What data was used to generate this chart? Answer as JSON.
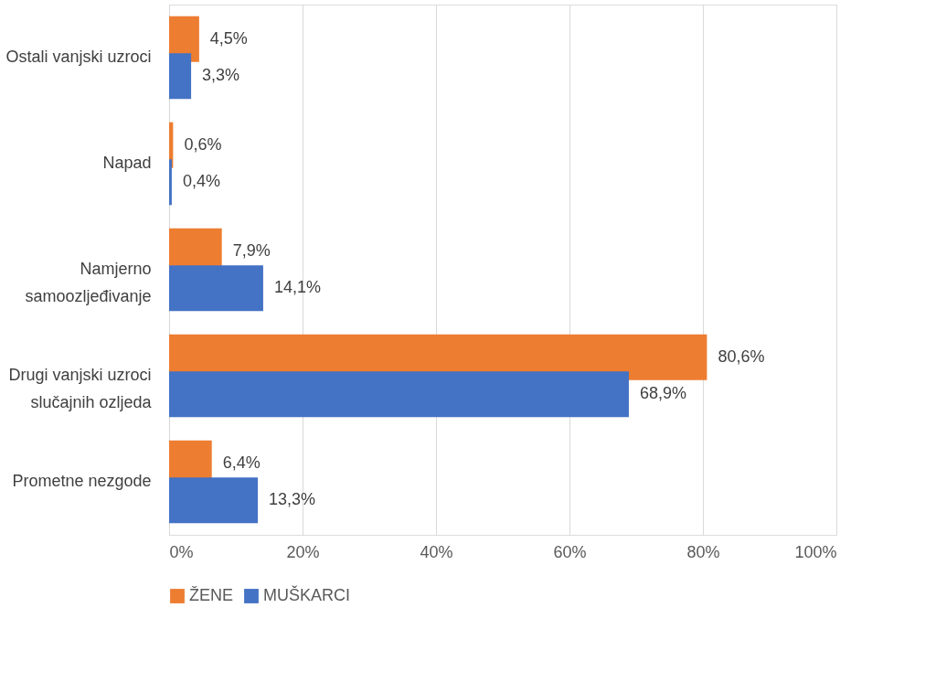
{
  "chart_data": {
    "type": "bar",
    "orientation": "horizontal",
    "categories": [
      "Ostali vanjski uzroci",
      "Napad",
      "Namjerno samoozljeđivanje",
      "Drugi vanjski uzroci slučajnih ozljeda",
      "Prometne nezgode"
    ],
    "series": [
      {
        "name": "ŽENE",
        "color": "#ed7d31",
        "values": [
          4.5,
          0.6,
          7.9,
          80.6,
          6.4
        ],
        "value_labels": [
          "4,5%",
          "0,6%",
          "7,9%",
          "80,6%",
          "6,4%"
        ]
      },
      {
        "name": "MUŠKARCI",
        "color": "#4472c4",
        "values": [
          3.3,
          0.4,
          14.1,
          68.9,
          13.3
        ],
        "value_labels": [
          "3,3%",
          "0,4%",
          "14,1%",
          "68,9%",
          "13,3%"
        ]
      }
    ],
    "xlim": [
      0,
      100
    ],
    "xticks": [
      {
        "value": 0,
        "label": "0%"
      },
      {
        "value": 20,
        "label": "20%"
      },
      {
        "value": 40,
        "label": "40%"
      },
      {
        "value": 60,
        "label": "60%"
      },
      {
        "value": 80,
        "label": "80%"
      },
      {
        "value": 100,
        "label": "100%"
      }
    ],
    "grid": "x",
    "legend": "bottom"
  }
}
